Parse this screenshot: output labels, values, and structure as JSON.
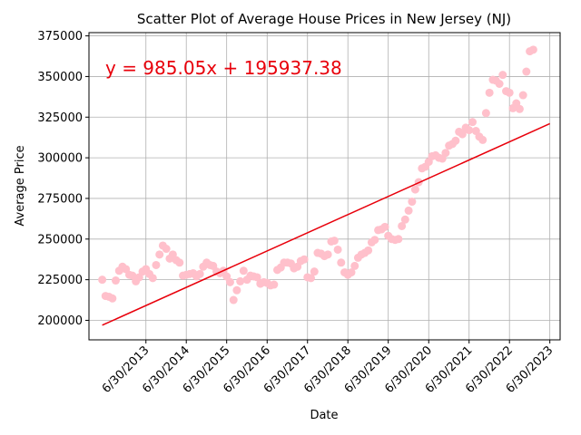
{
  "chart_data": {
    "type": "scatter",
    "title": "Scatter Plot of Average House Prices in New Jersey (NJ)",
    "xlabel": "Date",
    "ylabel": "Average Price",
    "equation": "y = 985.05x + 195937.38",
    "xlim": [
      "2012-02-01",
      "2023-10-01"
    ],
    "ylim": [
      188000,
      377000
    ],
    "x_ticks": [
      "6/30/2013",
      "6/30/2014",
      "6/30/2015",
      "6/30/2016",
      "6/30/2017",
      "6/30/2018",
      "6/30/2019",
      "6/30/2020",
      "6/30/2021",
      "6/30/2022",
      "6/30/2023"
    ],
    "x_tick_dates": [
      "2013-06-30",
      "2014-06-30",
      "2015-06-30",
      "2016-06-30",
      "2017-06-30",
      "2018-06-30",
      "2019-06-30",
      "2020-06-30",
      "2021-06-30",
      "2022-06-30",
      "2023-06-30"
    ],
    "y_ticks": [
      200000,
      225000,
      250000,
      275000,
      300000,
      325000,
      350000,
      375000
    ],
    "grid": true,
    "colors": {
      "points": "#ffc0cb",
      "trend": "#e8000b",
      "equation": "#e8000b",
      "axes": "#000000",
      "grid": "#b0b0b0"
    },
    "trend_line": {
      "start": [
        "2012-05-31",
        197000
      ],
      "end": [
        "2023-06-30",
        321000
      ]
    },
    "points": [
      [
        "2012-05-31",
        225000
      ],
      [
        "2012-06-30",
        215000
      ],
      [
        "2012-07-31",
        214500
      ],
      [
        "2012-08-31",
        213500
      ],
      [
        "2012-09-30",
        224500
      ],
      [
        "2012-10-31",
        230500
      ],
      [
        "2012-11-30",
        233000
      ],
      [
        "2012-12-31",
        231500
      ],
      [
        "2013-01-31",
        228000
      ],
      [
        "2013-02-28",
        227500
      ],
      [
        "2013-03-31",
        224000
      ],
      [
        "2013-04-30",
        226500
      ],
      [
        "2013-05-31",
        230000
      ],
      [
        "2013-06-30",
        231500
      ],
      [
        "2013-07-31",
        228500
      ],
      [
        "2013-08-31",
        226000
      ],
      [
        "2013-09-30",
        234000
      ],
      [
        "2013-10-31",
        240500
      ],
      [
        "2013-11-30",
        246000
      ],
      [
        "2013-12-31",
        244000
      ],
      [
        "2014-01-31",
        238000
      ],
      [
        "2014-02-28",
        240500
      ],
      [
        "2014-03-31",
        237000
      ],
      [
        "2014-04-30",
        235500
      ],
      [
        "2014-05-31",
        227500
      ],
      [
        "2014-06-30",
        228000
      ],
      [
        "2014-07-31",
        228500
      ],
      [
        "2014-08-31",
        229000
      ],
      [
        "2014-09-30",
        227000
      ],
      [
        "2014-10-31",
        228500
      ],
      [
        "2014-11-30",
        233000
      ],
      [
        "2014-12-31",
        235500
      ],
      [
        "2015-01-31",
        234000
      ],
      [
        "2015-02-28",
        233500
      ],
      [
        "2015-03-31",
        230000
      ],
      [
        "2015-04-30",
        229000
      ],
      [
        "2015-05-31",
        230500
      ],
      [
        "2015-06-30",
        227000
      ],
      [
        "2015-07-31",
        223500
      ],
      [
        "2015-08-31",
        212500
      ],
      [
        "2015-09-30",
        218500
      ],
      [
        "2015-10-31",
        224000
      ],
      [
        "2015-11-30",
        230500
      ],
      [
        "2015-12-31",
        225000
      ],
      [
        "2016-01-31",
        227500
      ],
      [
        "2016-02-29",
        227000
      ],
      [
        "2016-03-31",
        226500
      ],
      [
        "2016-04-30",
        222500
      ],
      [
        "2016-05-31",
        223500
      ],
      [
        "2016-06-30",
        223000
      ],
      [
        "2016-07-31",
        221500
      ],
      [
        "2016-08-31",
        222000
      ],
      [
        "2016-09-30",
        231000
      ],
      [
        "2016-10-31",
        232500
      ],
      [
        "2016-11-30",
        235500
      ],
      [
        "2016-12-31",
        235500
      ],
      [
        "2017-01-31",
        235000
      ],
      [
        "2017-02-28",
        232000
      ],
      [
        "2017-03-31",
        233000
      ],
      [
        "2017-04-30",
        236500
      ],
      [
        "2017-05-31",
        237500
      ],
      [
        "2017-06-30",
        226500
      ],
      [
        "2017-07-31",
        226000
      ],
      [
        "2017-08-31",
        230000
      ],
      [
        "2017-09-30",
        241500
      ],
      [
        "2017-10-31",
        241000
      ],
      [
        "2017-11-30",
        239500
      ],
      [
        "2017-12-31",
        240500
      ],
      [
        "2018-01-31",
        248500
      ],
      [
        "2018-02-28",
        249000
      ],
      [
        "2018-03-31",
        243500
      ],
      [
        "2018-04-30",
        235500
      ],
      [
        "2018-05-31",
        229500
      ],
      [
        "2018-06-30",
        228000
      ],
      [
        "2018-07-31",
        229500
      ],
      [
        "2018-08-31",
        233500
      ],
      [
        "2018-09-30",
        238500
      ],
      [
        "2018-10-31",
        240500
      ],
      [
        "2018-11-30",
        241500
      ],
      [
        "2018-12-31",
        243000
      ],
      [
        "2019-01-31",
        248000
      ],
      [
        "2019-02-28",
        249500
      ],
      [
        "2019-03-31",
        255500
      ],
      [
        "2019-04-30",
        256000
      ],
      [
        "2019-05-31",
        257500
      ],
      [
        "2019-06-30",
        252000
      ],
      [
        "2019-07-31",
        250000
      ],
      [
        "2019-08-31",
        249500
      ],
      [
        "2019-09-30",
        250000
      ],
      [
        "2019-10-31",
        258000
      ],
      [
        "2019-11-30",
        262000
      ],
      [
        "2019-12-31",
        267500
      ],
      [
        "2020-01-31",
        273000
      ],
      [
        "2020-02-29",
        280500
      ],
      [
        "2020-03-31",
        285000
      ],
      [
        "2020-04-30",
        293500
      ],
      [
        "2020-05-31",
        294500
      ],
      [
        "2020-06-30",
        297500
      ],
      [
        "2020-07-31",
        301000
      ],
      [
        "2020-08-31",
        301500
      ],
      [
        "2020-09-30",
        300000
      ],
      [
        "2020-10-31",
        299500
      ],
      [
        "2020-11-30",
        303000
      ],
      [
        "2020-12-31",
        307500
      ],
      [
        "2021-01-31",
        308500
      ],
      [
        "2021-02-28",
        310500
      ],
      [
        "2021-03-31",
        316000
      ],
      [
        "2021-04-30",
        314500
      ],
      [
        "2021-05-31",
        318500
      ],
      [
        "2021-06-30",
        317000
      ],
      [
        "2021-07-31",
        322000
      ],
      [
        "2021-08-31",
        316500
      ],
      [
        "2021-09-30",
        313000
      ],
      [
        "2021-10-31",
        311000
      ],
      [
        "2021-11-30",
        327500
      ],
      [
        "2021-12-31",
        340000
      ],
      [
        "2022-01-31",
        348000
      ],
      [
        "2022-02-28",
        347500
      ],
      [
        "2022-03-31",
        345500
      ],
      [
        "2022-04-30",
        351000
      ],
      [
        "2022-05-31",
        341000
      ],
      [
        "2022-06-30",
        340000
      ],
      [
        "2022-07-31",
        330500
      ],
      [
        "2022-08-31",
        333500
      ],
      [
        "2022-09-30",
        330000
      ],
      [
        "2022-10-31",
        338500
      ],
      [
        "2022-11-30",
        353000
      ],
      [
        "2022-12-31",
        365500
      ],
      [
        "2023-01-31",
        366500
      ]
    ]
  }
}
